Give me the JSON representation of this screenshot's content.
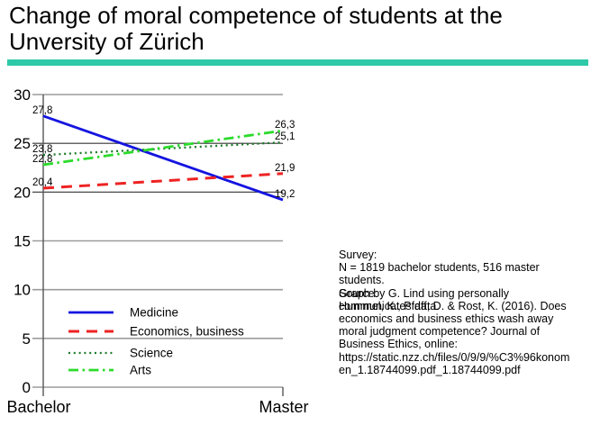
{
  "title": {
    "line1": "Change of moral competence of students at the",
    "line2": "Unversity of Zürich"
  },
  "divider": {
    "color": "#2EC9A8"
  },
  "chart_data": {
    "type": "line",
    "categories": [
      "Bachelor",
      "Master"
    ],
    "series": [
      {
        "name": "Medicine",
        "values": [
          27.8,
          19.2
        ],
        "color": "#1414E0",
        "style": "solid"
      },
      {
        "name": "Economics, business",
        "values": [
          20.4,
          21.9
        ],
        "color": "#EE2222",
        "style": "dashed"
      },
      {
        "name": "Science",
        "values": [
          23.8,
          25.1
        ],
        "color": "#1E7A2A",
        "style": "dotted"
      },
      {
        "name": "Arts",
        "values": [
          22.8,
          26.3
        ],
        "color": "#2BDB2B",
        "style": "dashdot"
      }
    ],
    "point_labels": {
      "Medicine": [
        "27,8",
        "19,2"
      ],
      "Economics, business": [
        "20,4",
        "21,9"
      ],
      "Science": [
        "23,8",
        "25,1"
      ],
      "Arts": [
        "22,8",
        "26,3"
      ]
    },
    "ylim": [
      0,
      30
    ],
    "ytick_interval": 5,
    "ytick_labels": [
      "0",
      "5",
      "10",
      "15",
      "20",
      "25",
      "30"
    ],
    "emphasized_gridlines": [
      20,
      25
    ],
    "grid": true,
    "legend_position": "lower-left",
    "decimal_separator": ",",
    "xlabel": "",
    "ylabel": ""
  },
  "side_text": {
    "survey_heading": "Survey:",
    "survey_lines": [
      "N = 1819 bachelor students, 516 master",
      "students.",
      "Graph by G. Lind using personally",
      "communicates data."
    ],
    "source_heading": "Source:",
    "source_lines": [
      "Hummel, K., Pfaff, D. & Rost, K. (2016). Does",
      "economics and business ethics wash away",
      "moral judgment competence? Journal of",
      "Business Ethics, online:",
      "https://static.nzz.ch/files/0/9/9/%C3%96konom",
      "en_1.18744099.pdf_1.18744099.pdf"
    ]
  }
}
